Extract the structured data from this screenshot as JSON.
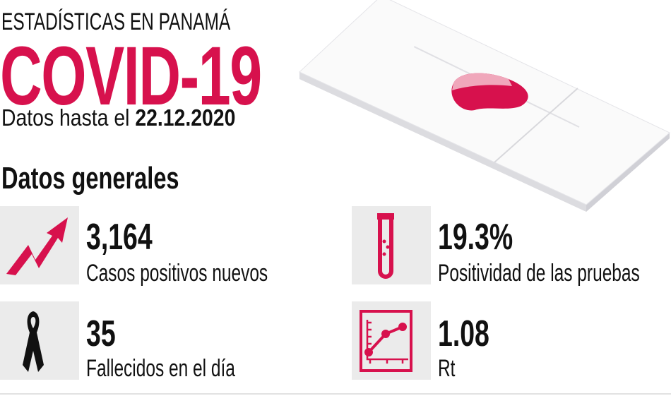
{
  "header": {
    "kicker": "ESTADÍSTICAS EN PANAMÁ",
    "title": "COVID-19",
    "date_prefix": "Datos hasta el",
    "date": "22.12.2020"
  },
  "section_title": "Datos generales",
  "accent_color": "#d7114d",
  "stats": [
    {
      "icon": "trend-up-arrow-icon",
      "value": "3,164",
      "label": "Casos positivos nuevos"
    },
    {
      "icon": "test-tube-icon",
      "value": "19.3%",
      "label": "Positividad de las pruebas"
    },
    {
      "icon": "mourning-ribbon-icon",
      "value": "35",
      "label": "Fallecidos en el día"
    },
    {
      "icon": "line-chart-icon",
      "value": "1.08",
      "label": "Rt"
    }
  ]
}
